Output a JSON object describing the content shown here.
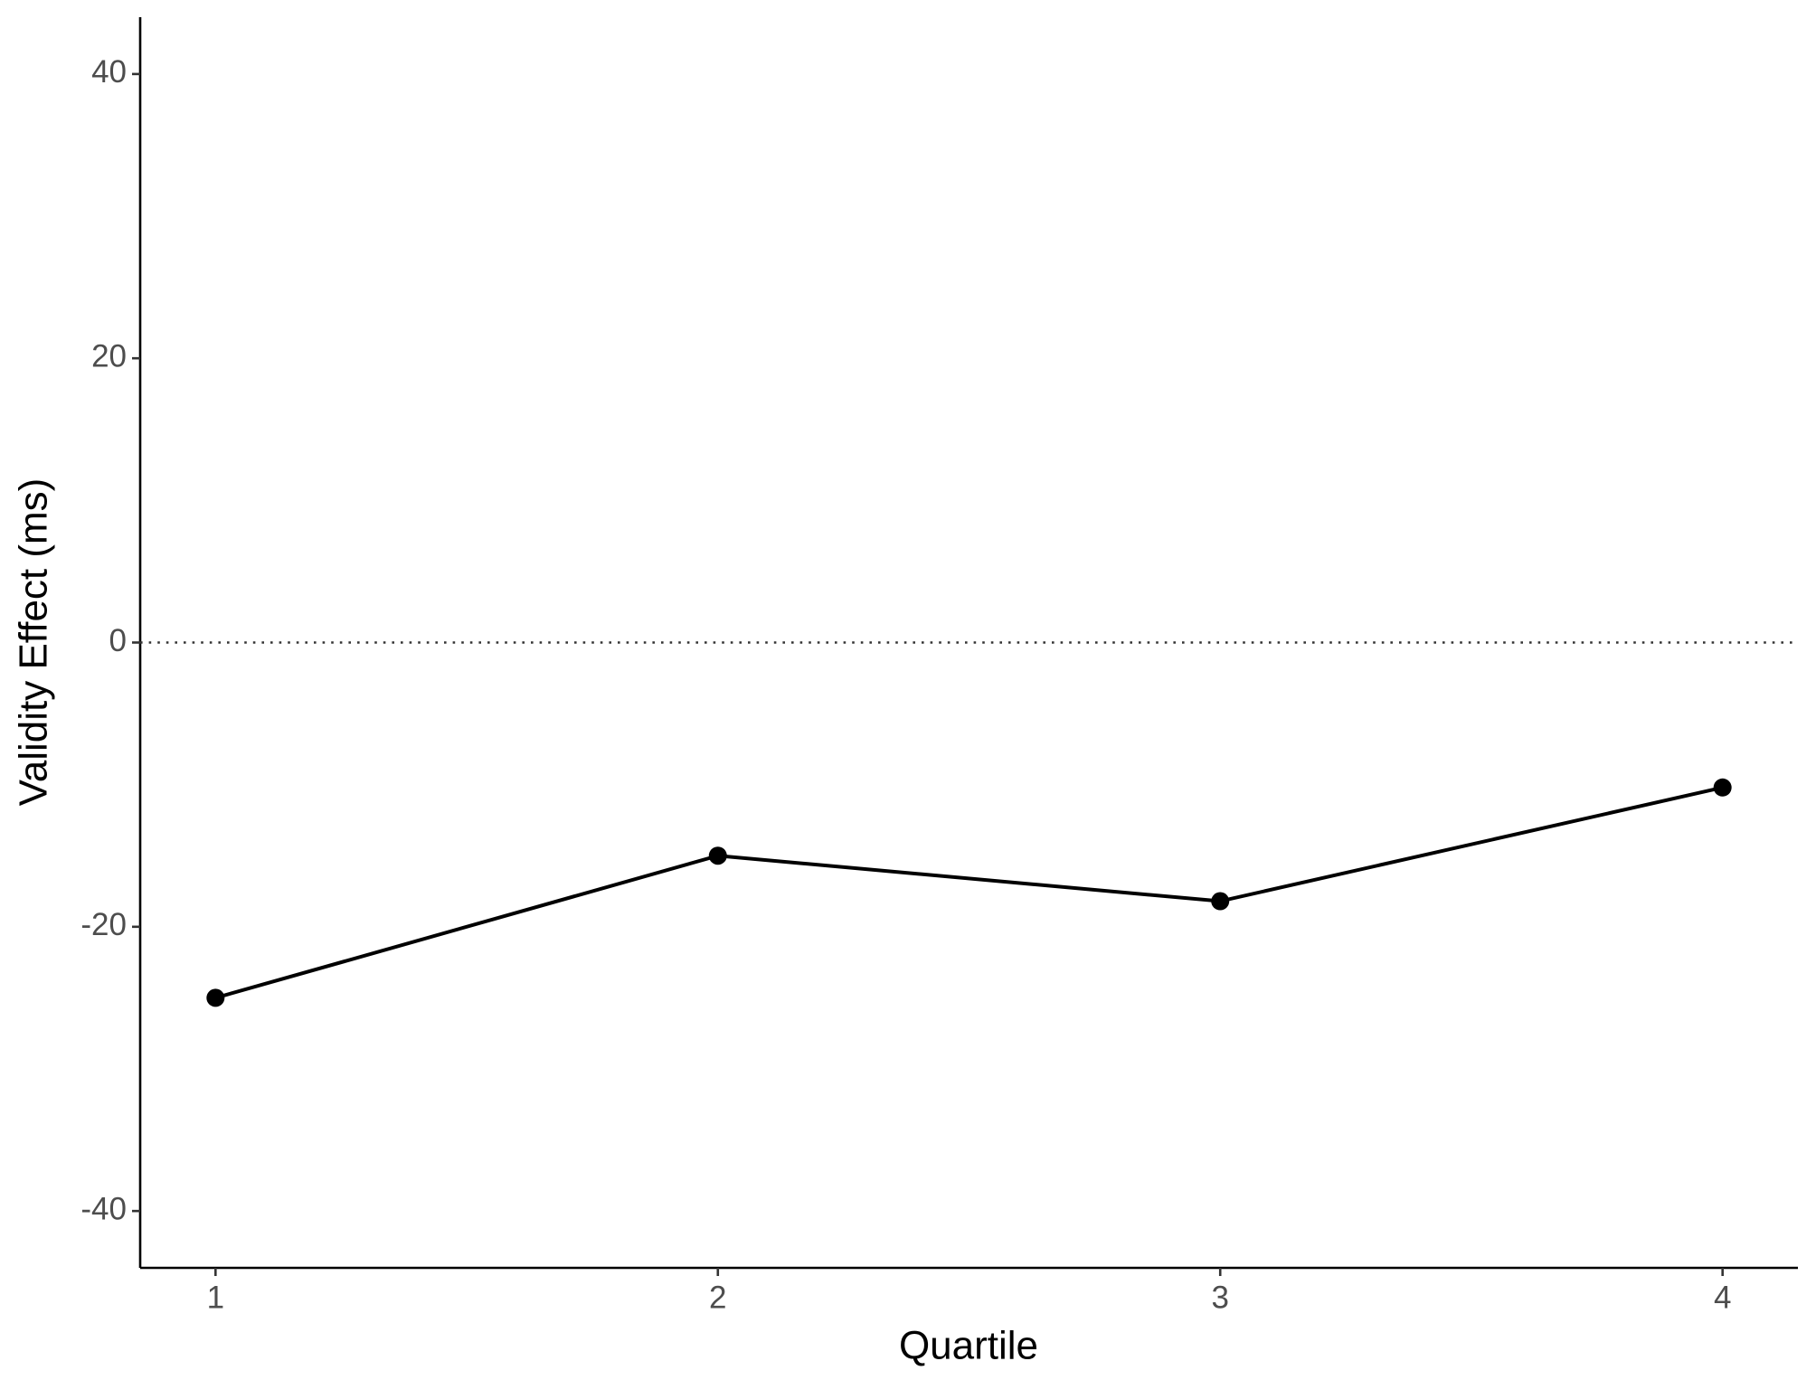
{
  "chart_data": {
    "type": "line",
    "x_label": "Quartile",
    "y_label": "Validity Effect (ms)",
    "x": [
      1,
      2,
      3,
      4
    ],
    "series": [
      {
        "color": "#000000",
        "values": [
          -25,
          -15,
          -18.2,
          -10.2
        ]
      }
    ],
    "xlim": [
      0.85,
      4.15
    ],
    "xticks": [
      1,
      2,
      3,
      4
    ],
    "ylim": [
      -44,
      44
    ],
    "yticks": [
      -40,
      -20,
      0,
      20,
      40
    ],
    "hline": 0,
    "grid": false
  }
}
